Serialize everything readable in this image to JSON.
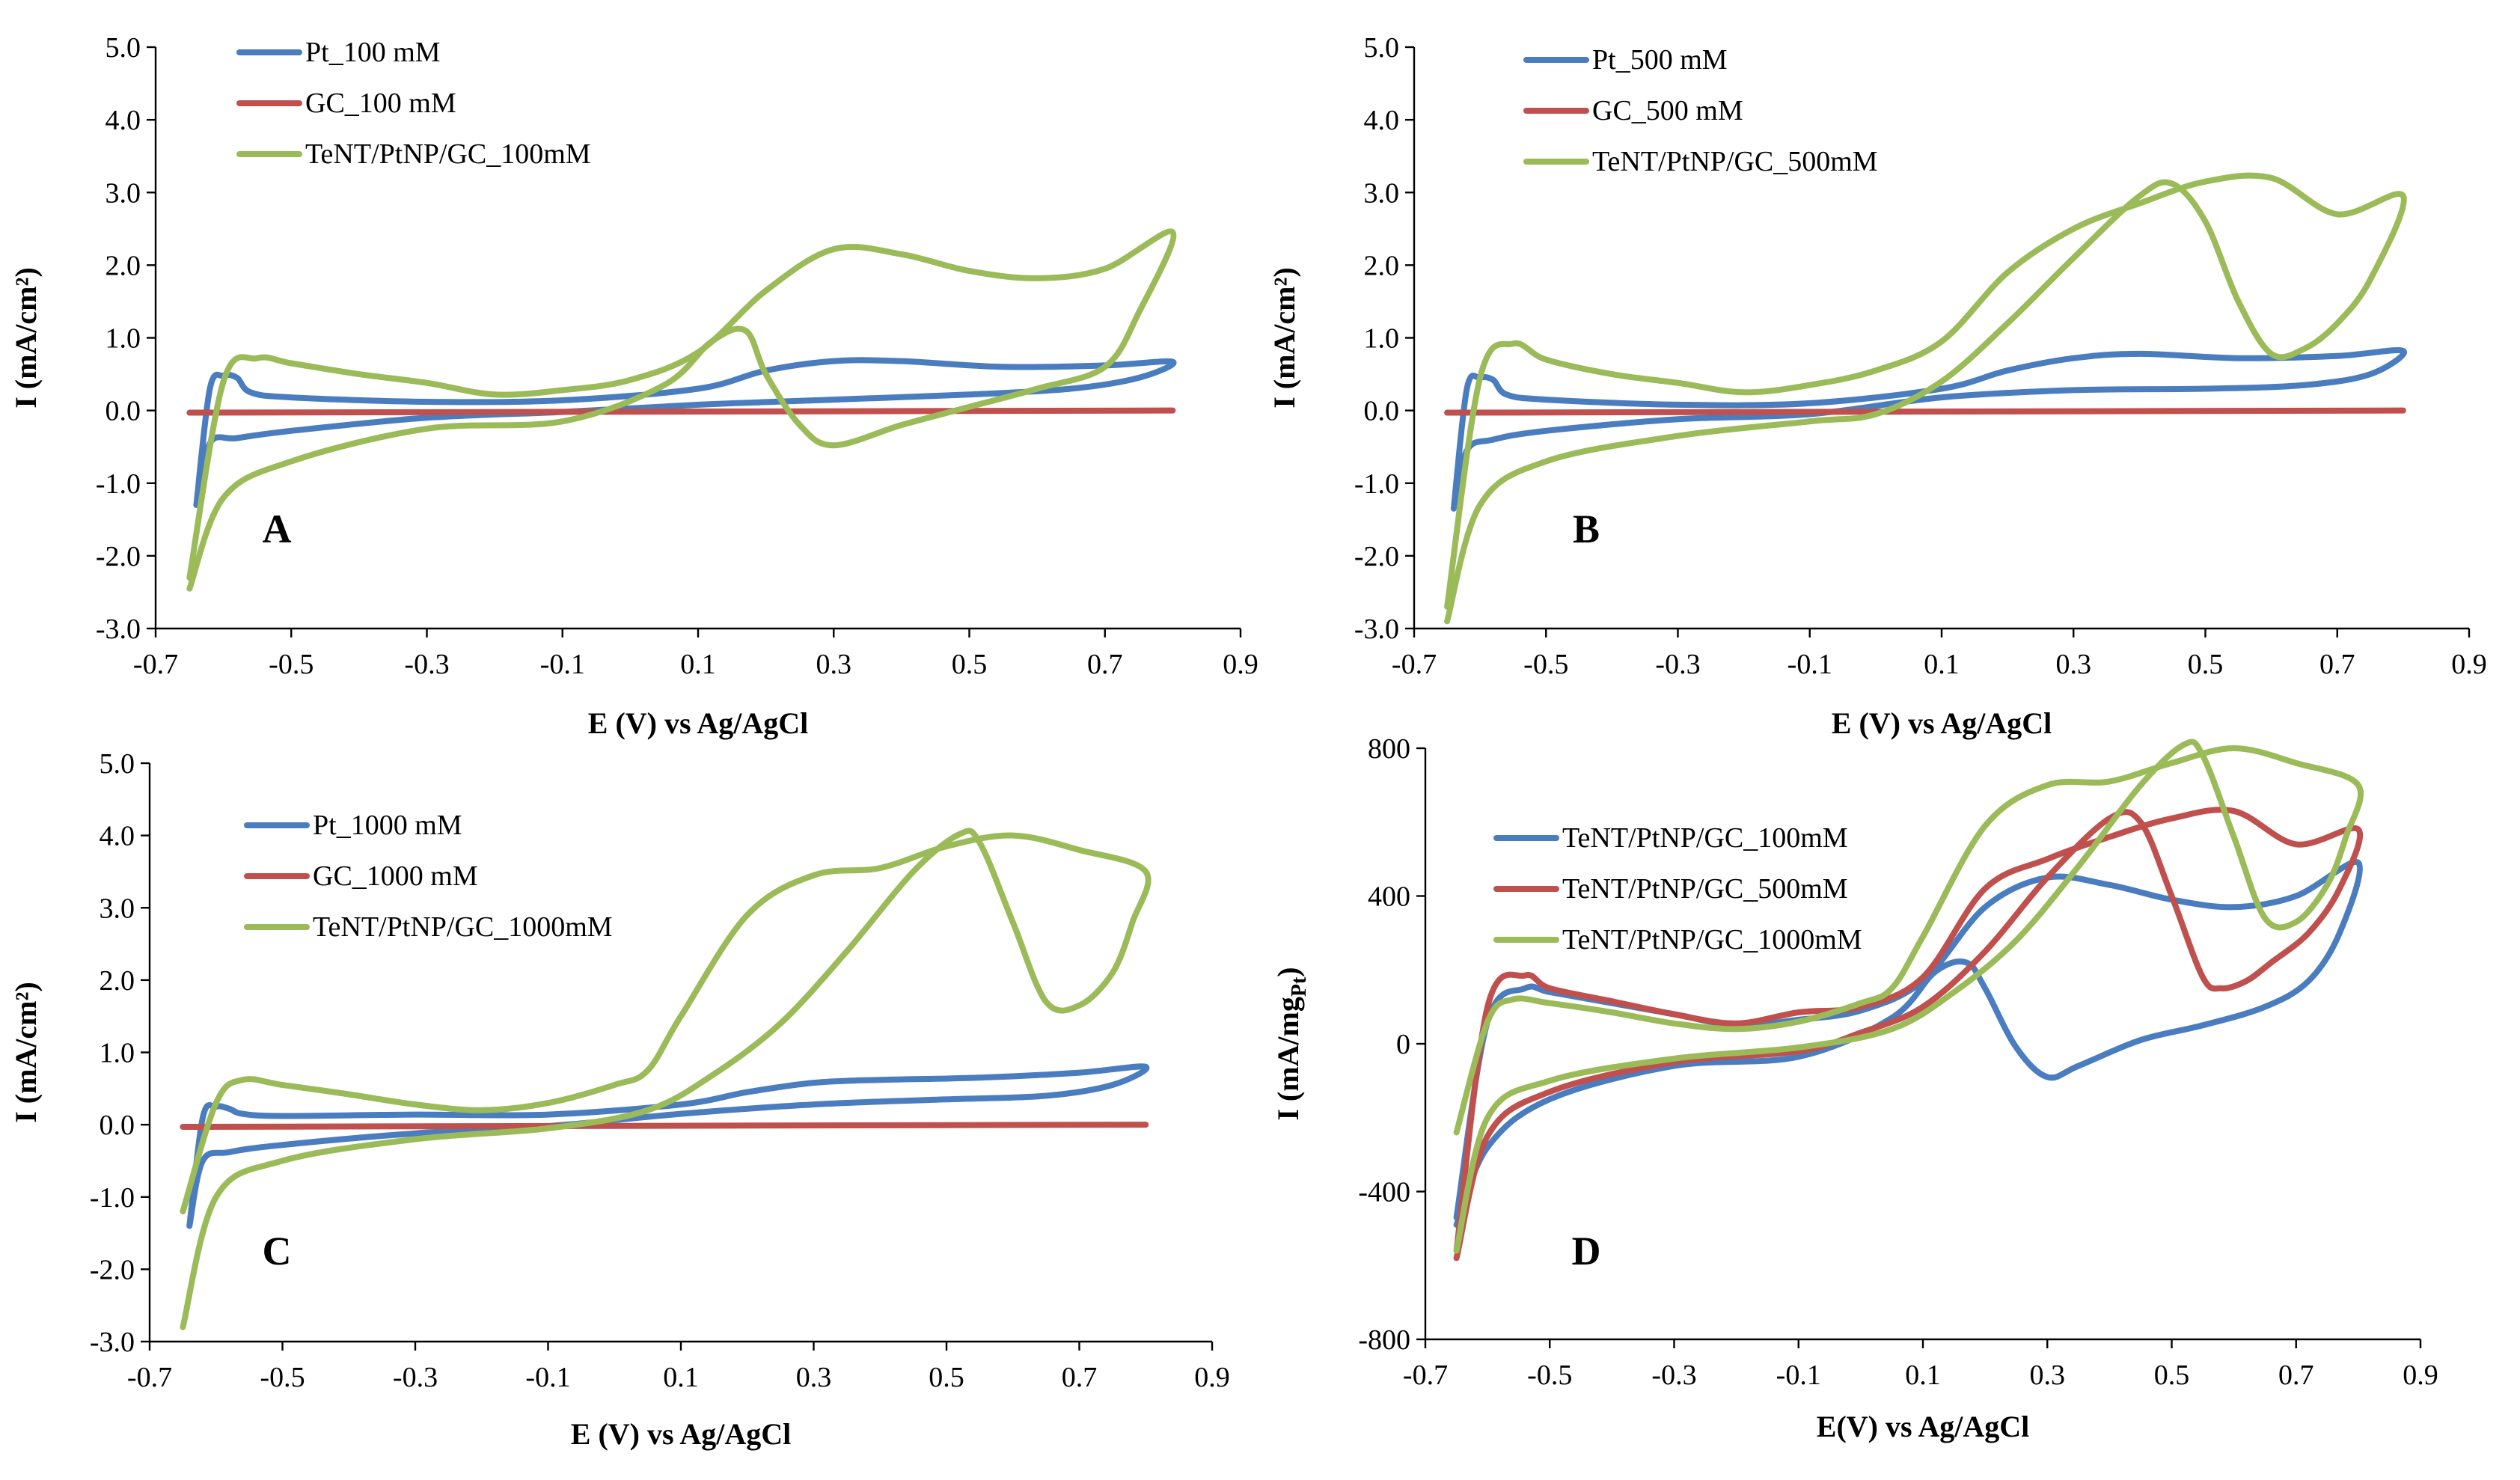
{
  "colors": {
    "blue": "#4a7dbf",
    "red": "#c0504d",
    "green": "#9bbb59"
  },
  "chart_data": [
    {
      "panel": "A",
      "type": "line",
      "title": "",
      "letter": "A",
      "xlabel": "E (V) vs Ag/AgCl",
      "ylabel": "I (mA/cm²)",
      "xlim": [
        -0.7,
        0.9
      ],
      "ylim": [
        -3.0,
        5.0
      ],
      "xticks": [
        -0.7,
        -0.5,
        -0.3,
        -0.1,
        0.1,
        0.3,
        0.5,
        0.7,
        0.9
      ],
      "yticks": [
        -3.0,
        -2.0,
        -1.0,
        0.0,
        1.0,
        2.0,
        3.0,
        4.0,
        5.0
      ],
      "legend_position": "top-left",
      "series": [
        {
          "name": "Pt_100 mM",
          "color": "blue",
          "x": [
            -0.64,
            -0.62,
            -0.6,
            -0.58,
            -0.56,
            -0.5,
            -0.3,
            -0.1,
            0.1,
            0.2,
            0.3,
            0.4,
            0.55,
            0.7,
            0.8,
            0.75,
            0.65,
            0.5,
            0.3,
            0.1,
            -0.1,
            -0.3,
            -0.5,
            -0.58,
            -0.62,
            -0.64
          ],
          "y": [
            -1.3,
            0.3,
            0.48,
            0.45,
            0.25,
            0.18,
            0.12,
            0.14,
            0.3,
            0.55,
            0.68,
            0.68,
            0.6,
            0.62,
            0.67,
            0.45,
            0.3,
            0.22,
            0.15,
            0.08,
            -0.02,
            -0.1,
            -0.28,
            -0.38,
            -0.45,
            -1.3
          ]
        },
        {
          "name": "GC_100 mM",
          "color": "red",
          "x": [
            -0.65,
            0.8
          ],
          "y": [
            -0.03,
            0.0
          ]
        },
        {
          "name": "TeNT/PtNP/GC_100mM",
          "color": "green",
          "x": [
            -0.65,
            -0.6,
            -0.55,
            -0.5,
            -0.4,
            -0.3,
            -0.2,
            -0.1,
            0.0,
            0.1,
            0.2,
            0.3,
            0.4,
            0.5,
            0.6,
            0.7,
            0.8,
            0.75,
            0.7,
            0.6,
            0.5,
            0.4,
            0.3,
            0.25,
            0.2,
            0.17,
            0.12,
            0.05,
            -0.1,
            -0.3,
            -0.5,
            -0.6,
            -0.65
          ],
          "y": [
            -2.3,
            0.4,
            0.72,
            0.65,
            0.5,
            0.38,
            0.22,
            0.28,
            0.42,
            0.8,
            1.65,
            2.22,
            2.15,
            1.92,
            1.82,
            1.95,
            2.45,
            1.35,
            0.6,
            0.3,
            0.05,
            -0.2,
            -0.48,
            -0.2,
            0.5,
            1.1,
            0.95,
            0.35,
            -0.15,
            -0.25,
            -0.7,
            -1.2,
            -2.45
          ]
        }
      ]
    },
    {
      "panel": "B",
      "type": "line",
      "title": "",
      "letter": "B",
      "xlabel": "E (V) vs Ag/AgCl",
      "ylabel": "I (mA/cm²)",
      "xlim": [
        -0.7,
        0.9
      ],
      "ylim": [
        -3.0,
        5.0
      ],
      "xticks": [
        -0.7,
        -0.5,
        -0.3,
        -0.1,
        0.1,
        0.3,
        0.5,
        0.7,
        0.9
      ],
      "yticks": [
        -3.0,
        -2.0,
        -1.0,
        0.0,
        1.0,
        2.0,
        3.0,
        4.0,
        5.0
      ],
      "legend_position": "top-left",
      "series": [
        {
          "name": "Pt_500 mM",
          "color": "blue",
          "x": [
            -0.64,
            -0.62,
            -0.6,
            -0.58,
            -0.56,
            -0.5,
            -0.3,
            -0.1,
            0.1,
            0.2,
            0.3,
            0.4,
            0.55,
            0.7,
            0.8,
            0.75,
            0.65,
            0.5,
            0.3,
            0.1,
            -0.1,
            -0.3,
            -0.5,
            -0.58,
            -0.62,
            -0.64
          ],
          "y": [
            -1.35,
            0.3,
            0.45,
            0.42,
            0.22,
            0.15,
            0.08,
            0.1,
            0.3,
            0.55,
            0.72,
            0.78,
            0.72,
            0.75,
            0.82,
            0.5,
            0.35,
            0.3,
            0.28,
            0.18,
            -0.05,
            -0.12,
            -0.28,
            -0.4,
            -0.55,
            -1.35
          ]
        },
        {
          "name": "GC_500 mM",
          "color": "red",
          "x": [
            -0.65,
            0.8
          ],
          "y": [
            -0.03,
            0.0
          ]
        },
        {
          "name": "TeNT/PtNP/GC_500mM",
          "color": "green",
          "x": [
            -0.65,
            -0.6,
            -0.55,
            -0.5,
            -0.4,
            -0.3,
            -0.2,
            -0.1,
            0.0,
            0.1,
            0.2,
            0.3,
            0.4,
            0.5,
            0.6,
            0.7,
            0.8,
            0.75,
            0.7,
            0.65,
            0.6,
            0.55,
            0.5,
            0.45,
            0.4,
            0.3,
            0.2,
            0.1,
            0.0,
            -0.1,
            -0.3,
            -0.5,
            -0.6,
            -0.65
          ],
          "y": [
            -2.7,
            0.45,
            0.92,
            0.7,
            0.5,
            0.38,
            0.25,
            0.35,
            0.55,
            0.95,
            1.9,
            2.5,
            2.85,
            3.15,
            3.2,
            2.7,
            2.95,
            1.8,
            1.2,
            0.85,
            0.78,
            1.5,
            2.6,
            3.12,
            2.95,
            2.1,
            1.2,
            0.4,
            -0.05,
            -0.15,
            -0.35,
            -0.7,
            -1.3,
            -2.9
          ]
        }
      ]
    },
    {
      "panel": "C",
      "type": "line",
      "title": "",
      "letter": "C",
      "xlabel": "E (V) vs Ag/AgCl",
      "ylabel": "I (mA/cm²)",
      "xlim": [
        -0.7,
        0.9
      ],
      "ylim": [
        -3.0,
        5.0
      ],
      "xticks": [
        -0.7,
        -0.5,
        -0.3,
        -0.1,
        0.1,
        0.3,
        0.5,
        0.7,
        0.9
      ],
      "yticks": [
        -3.0,
        -2.0,
        -1.0,
        0.0,
        1.0,
        2.0,
        3.0,
        4.0,
        5.0
      ],
      "legend_position": "top-left",
      "series": [
        {
          "name": "Pt_1000 mM",
          "color": "blue",
          "x": [
            -0.64,
            -0.62,
            -0.6,
            -0.58,
            -0.56,
            -0.5,
            -0.3,
            -0.1,
            0.1,
            0.2,
            0.3,
            0.4,
            0.55,
            0.7,
            0.8,
            0.75,
            0.65,
            0.5,
            0.3,
            0.1,
            -0.1,
            -0.3,
            -0.5,
            -0.58,
            -0.62,
            -0.64
          ],
          "y": [
            -1.4,
            0.1,
            0.25,
            0.22,
            0.15,
            0.12,
            0.14,
            0.14,
            0.28,
            0.45,
            0.58,
            0.62,
            0.65,
            0.72,
            0.8,
            0.55,
            0.4,
            0.35,
            0.28,
            0.15,
            -0.02,
            -0.12,
            -0.28,
            -0.38,
            -0.5,
            -1.4
          ]
        },
        {
          "name": "GC_1000 mM",
          "color": "red",
          "x": [
            -0.65,
            0.8
          ],
          "y": [
            -0.03,
            0.0
          ]
        },
        {
          "name": "TeNT/PtNP/GC_1000mM",
          "color": "green",
          "x": [
            -0.65,
            -0.6,
            -0.56,
            -0.5,
            -0.4,
            -0.3,
            -0.2,
            -0.1,
            0.0,
            0.05,
            0.1,
            0.2,
            0.3,
            0.4,
            0.5,
            0.6,
            0.7,
            0.8,
            0.78,
            0.75,
            0.7,
            0.65,
            0.6,
            0.55,
            0.52,
            0.45,
            0.35,
            0.25,
            0.15,
            0.05,
            -0.1,
            -0.3,
            -0.5,
            -0.6,
            -0.65
          ],
          "y": [
            -1.2,
            0.3,
            0.62,
            0.55,
            0.42,
            0.28,
            0.2,
            0.3,
            0.55,
            0.75,
            1.5,
            2.9,
            3.45,
            3.55,
            3.85,
            4.0,
            3.8,
            3.5,
            2.8,
            2.1,
            1.65,
            1.7,
            2.8,
            3.9,
            4.02,
            3.5,
            2.4,
            1.4,
            0.7,
            0.2,
            -0.05,
            -0.2,
            -0.5,
            -1.0,
            -2.8
          ]
        }
      ]
    },
    {
      "panel": "D",
      "type": "line",
      "title": "",
      "letter": "D",
      "xlabel": "E(V) vs Ag/AgCl",
      "ylabel": "I (mA/mg",
      "ylabel_sub": "Pt",
      "ylabel_close": ")",
      "xlim": [
        -0.7,
        0.9
      ],
      "ylim": [
        -800,
        800
      ],
      "xticks": [
        -0.7,
        -0.5,
        -0.3,
        -0.1,
        0.1,
        0.3,
        0.5,
        0.7,
        0.9
      ],
      "yticks": [
        -800,
        -400,
        0,
        400,
        800
      ],
      "legend_position": "top-left",
      "series": [
        {
          "name": "TeNT/PtNP/GC_100mM",
          "color": "blue",
          "x": [
            -0.65,
            -0.6,
            -0.54,
            -0.5,
            -0.4,
            -0.3,
            -0.2,
            -0.1,
            0.0,
            0.1,
            0.2,
            0.3,
            0.4,
            0.5,
            0.6,
            0.7,
            0.8,
            0.77,
            0.72,
            0.65,
            0.55,
            0.45,
            0.35,
            0.3,
            0.25,
            0.2,
            0.17,
            0.12,
            0.05,
            -0.1,
            -0.3,
            -0.5,
            -0.6,
            -0.65
          ],
          "y": [
            -470,
            60,
            150,
            140,
            110,
            80,
            50,
            65,
            90,
            170,
            370,
            450,
            430,
            390,
            370,
            400,
            490,
            300,
            170,
            100,
            50,
            10,
            -60,
            -90,
            -10,
            150,
            220,
            195,
            70,
            -35,
            -60,
            -150,
            -280,
            -490
          ]
        },
        {
          "name": "TeNT/PtNP/GC_500mM",
          "color": "red",
          "x": [
            -0.65,
            -0.6,
            -0.54,
            -0.5,
            -0.4,
            -0.3,
            -0.2,
            -0.1,
            0.0,
            0.1,
            0.2,
            0.3,
            0.4,
            0.5,
            0.6,
            0.7,
            0.8,
            0.77,
            0.72,
            0.66,
            0.62,
            0.58,
            0.55,
            0.5,
            0.45,
            0.4,
            0.3,
            0.2,
            0.1,
            0.0,
            -0.1,
            -0.3,
            -0.5,
            -0.6,
            -0.65
          ],
          "y": [
            -560,
            100,
            185,
            150,
            115,
            80,
            55,
            85,
            100,
            180,
            420,
            500,
            560,
            610,
            630,
            540,
            580,
            420,
            300,
            220,
            170,
            150,
            180,
            400,
            600,
            610,
            450,
            250,
            100,
            30,
            -20,
            -50,
            -130,
            -250,
            -580
          ]
        },
        {
          "name": "TeNT/PtNP/GC_1000mM",
          "color": "green",
          "x": [
            -0.65,
            -0.6,
            -0.56,
            -0.5,
            -0.4,
            -0.3,
            -0.2,
            -0.1,
            0.0,
            0.05,
            0.1,
            0.2,
            0.3,
            0.4,
            0.5,
            0.6,
            0.7,
            0.8,
            0.78,
            0.75,
            0.7,
            0.65,
            0.6,
            0.55,
            0.52,
            0.45,
            0.35,
            0.25,
            0.15,
            0.05,
            -0.1,
            -0.3,
            -0.5,
            -0.6,
            -0.65
          ],
          "y": [
            -240,
            60,
            120,
            110,
            85,
            55,
            40,
            60,
            110,
            150,
            290,
            590,
            700,
            710,
            760,
            800,
            760,
            700,
            560,
            430,
            330,
            340,
            560,
            780,
            810,
            700,
            480,
            280,
            140,
            40,
            -10,
            -40,
            -100,
            -200,
            -560
          ]
        }
      ]
    }
  ],
  "legends": [
    [
      "Pt_100 mM",
      "GC_100 mM",
      "TeNT/PtNP/GC_100mM"
    ],
    [
      "Pt_500 mM",
      "GC_500 mM",
      "TeNT/PtNP/GC_500mM"
    ],
    [
      "Pt_1000 mM",
      "GC_1000 mM",
      "TeNT/PtNP/GC_1000mM"
    ],
    [
      "TeNT/PtNP/GC_100mM",
      "TeNT/PtNP/GC_500mM",
      "TeNT/PtNP/GC_1000mM"
    ]
  ]
}
